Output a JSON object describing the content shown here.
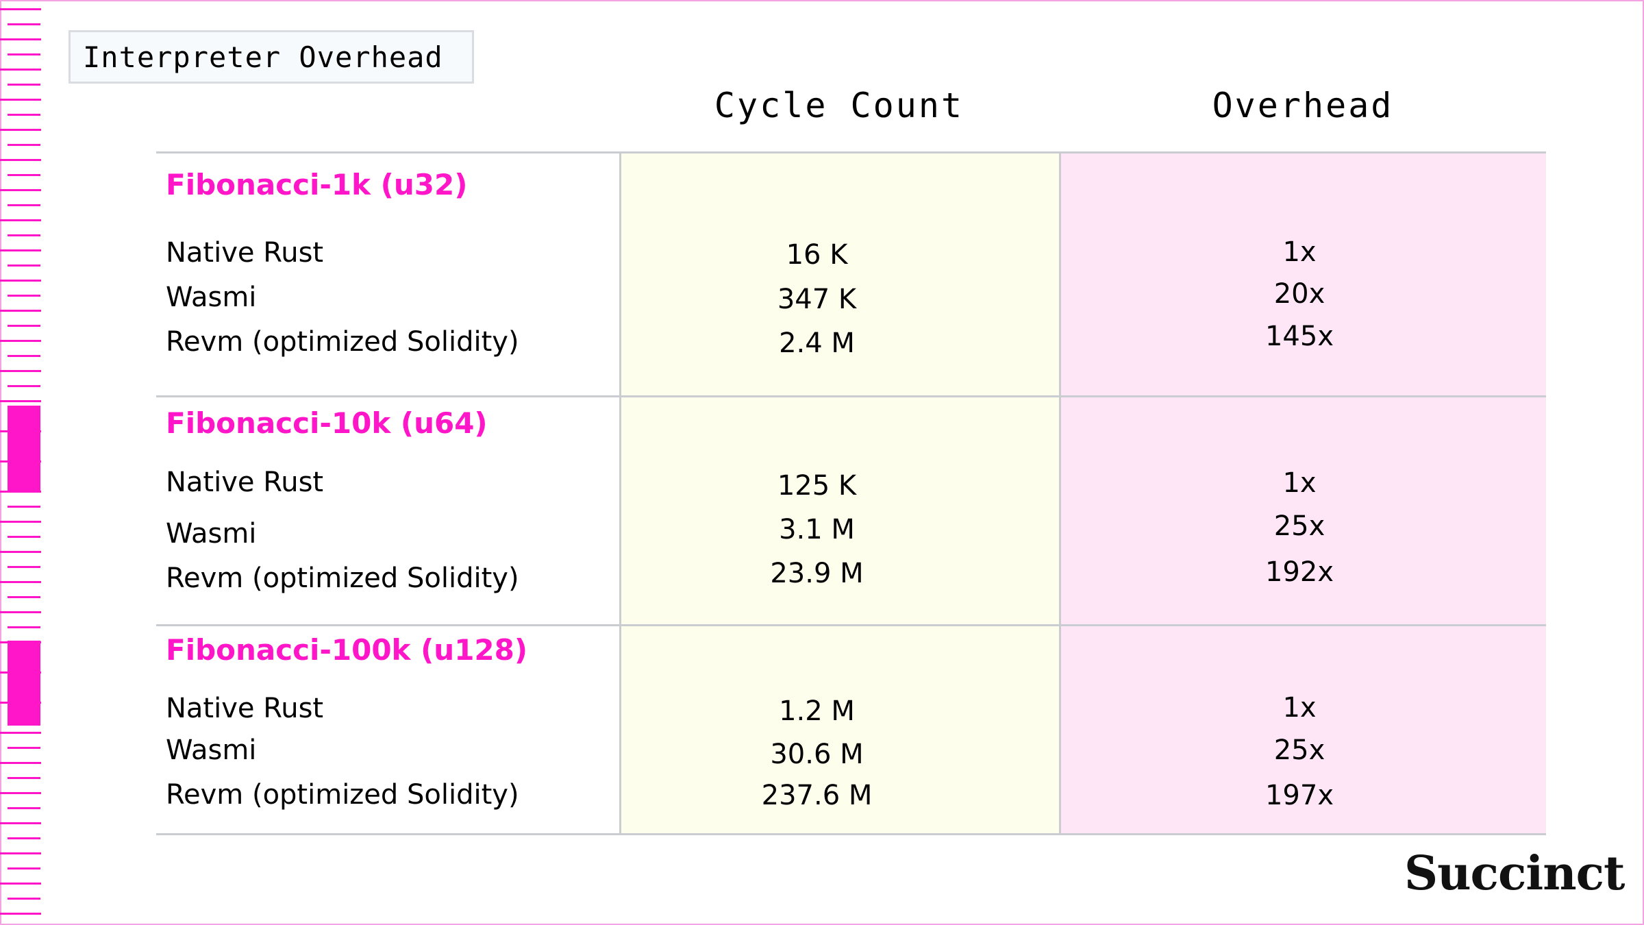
{
  "title": "Interpreter Overhead",
  "columns": {
    "cycles": "Cycle Count",
    "overhead": "Overhead"
  },
  "groups": [
    {
      "name": "Fibonacci-1k (u32)",
      "rows": [
        {
          "label": "Native Rust",
          "cycles": "16 K",
          "overhead": "1x"
        },
        {
          "label": "Wasmi",
          "cycles": "347 K",
          "overhead": "20x"
        },
        {
          "label": "Revm (optimized Solidity)",
          "cycles": "2.4 M",
          "overhead": "145x"
        }
      ]
    },
    {
      "name": "Fibonacci-10k (u64)",
      "rows": [
        {
          "label": "Native Rust",
          "cycles": "125 K",
          "overhead": "1x"
        },
        {
          "label": "Wasmi",
          "cycles": "3.1 M",
          "overhead": "25x"
        },
        {
          "label": "Revm (optimized Solidity)",
          "cycles": "23.9 M",
          "overhead": "192x"
        }
      ]
    },
    {
      "name": "Fibonacci-100k (u128)",
      "rows": [
        {
          "label": "Native Rust",
          "cycles": "1.2 M",
          "overhead": "1x"
        },
        {
          "label": "Wasmi",
          "cycles": "30.6 M",
          "overhead": "25x"
        },
        {
          "label": "Revm (optimized Solidity)",
          "cycles": "237.6 M",
          "overhead": "197x"
        }
      ]
    }
  ],
  "brand": "Succinct",
  "colors": {
    "accent": "#ff16c8",
    "cycles_bg": "#fefeec",
    "overhead_bg": "#ffe6f7",
    "rule": "#c9cdd2"
  }
}
